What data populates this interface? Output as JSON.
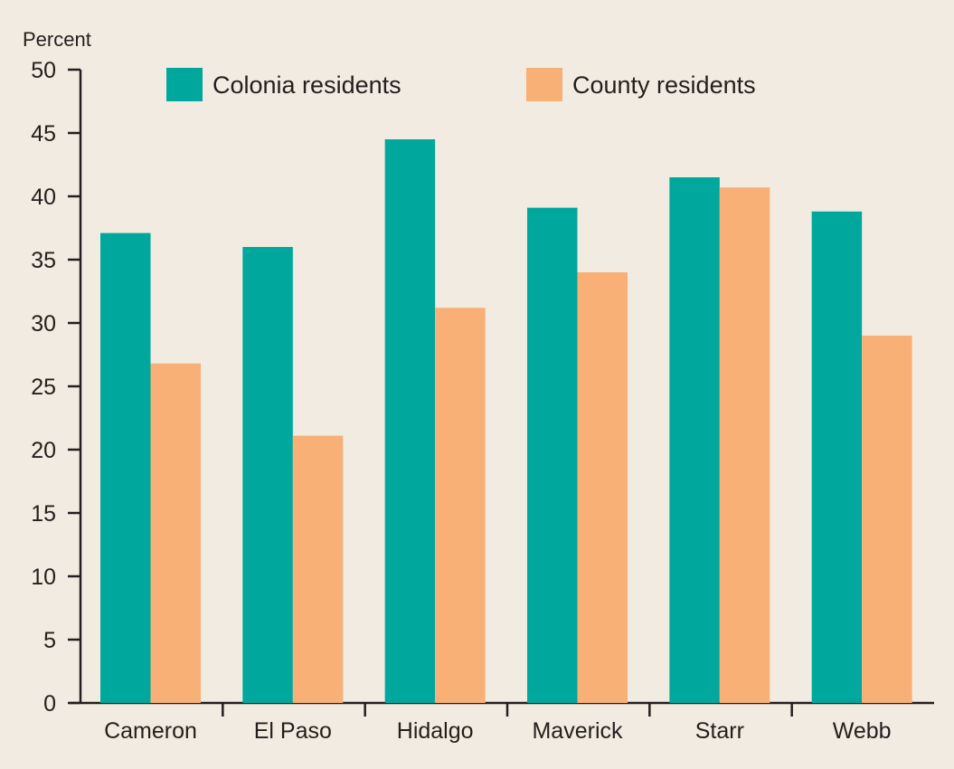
{
  "chart_data": {
    "type": "bar",
    "title": "",
    "xlabel": "",
    "ylabel": "Percent",
    "ylim": [
      0,
      50
    ],
    "yticks": [
      0,
      5,
      10,
      15,
      20,
      25,
      30,
      35,
      40,
      45,
      50
    ],
    "grid": false,
    "legend_position": "top",
    "categories": [
      "Cameron",
      "El Paso",
      "Hidalgo",
      "Maverick",
      "Starr",
      "Webb"
    ],
    "series": [
      {
        "name": "Colonia residents",
        "color": "#00a79d",
        "values": [
          37.1,
          36.0,
          44.5,
          39.1,
          41.5,
          38.8
        ]
      },
      {
        "name": "County residents",
        "color": "#f8b077",
        "values": [
          26.8,
          21.1,
          31.2,
          34.0,
          40.7,
          29.0
        ]
      }
    ]
  }
}
